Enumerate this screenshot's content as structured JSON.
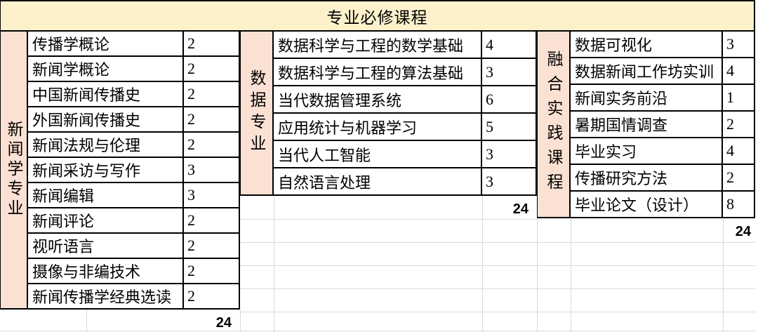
{
  "header": {
    "title": "专业必修课程"
  },
  "colors": {
    "header_bg": "#fcf1cb",
    "label_bg": "#fbe1d3",
    "border": "#000000",
    "gridline": "#d9d9d9"
  },
  "groups": [
    {
      "label": "新闻学专业",
      "total": "24",
      "courses": [
        {
          "name": "传播学概论",
          "credits": "2"
        },
        {
          "name": "新闻学概论",
          "credits": "2"
        },
        {
          "name": "中国新闻传播史",
          "credits": "2"
        },
        {
          "name": "外国新闻传播史",
          "credits": "2"
        },
        {
          "name": "新闻法规与伦理",
          "credits": "2"
        },
        {
          "name": "新闻采访与写作",
          "credits": "3"
        },
        {
          "name": "新闻编辑",
          "credits": "3"
        },
        {
          "name": "新闻评论",
          "credits": "2"
        },
        {
          "name": "视听语言",
          "credits": "2"
        },
        {
          "name": "摄像与非编技术",
          "credits": "2"
        },
        {
          "name": "新闻传播学经典选读",
          "credits": "2"
        }
      ]
    },
    {
      "label": "数据专业",
      "total": "24",
      "courses": [
        {
          "name": "数据科学与工程的数学基础",
          "credits": "4"
        },
        {
          "name": "数据科学与工程的算法基础",
          "credits": "3"
        },
        {
          "name": "当代数据管理系统",
          "credits": "6"
        },
        {
          "name": "应用统计与机器学习",
          "credits": "5"
        },
        {
          "name": "当代人工智能",
          "credits": "3"
        },
        {
          "name": "自然语言处理",
          "credits": "3"
        }
      ]
    },
    {
      "label": "融合实践课程",
      "total": "24",
      "courses": [
        {
          "name": "数据可视化",
          "credits": "3"
        },
        {
          "name": "数据新闻工作坊实训",
          "credits": "4"
        },
        {
          "name": "新闻实务前沿",
          "credits": "1"
        },
        {
          "name": "暑期国情调查",
          "credits": "2"
        },
        {
          "name": "毕业实习",
          "credits": "4"
        },
        {
          "name": "传播研究方法",
          "credits": "2"
        },
        {
          "name": "毕业论文（设计）",
          "credits": "8"
        }
      ]
    }
  ]
}
